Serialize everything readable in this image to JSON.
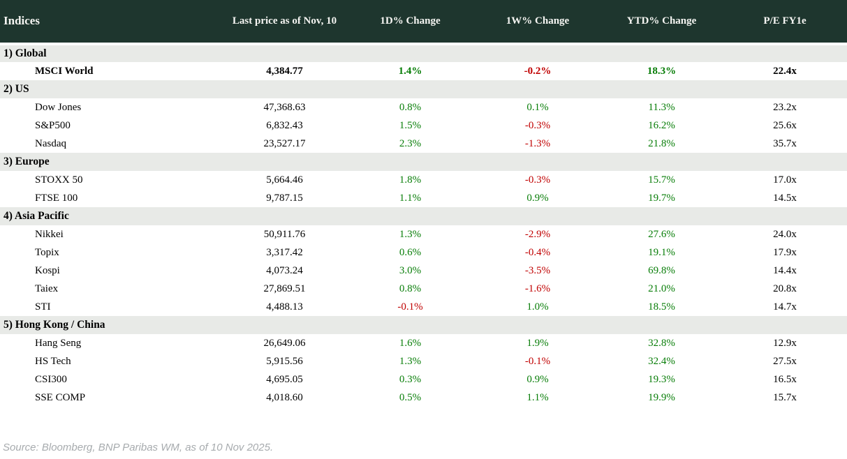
{
  "header": {
    "col_indices": "Indices",
    "col_last_price": "Last price as of Nov, 10",
    "col_1d": "1D% Change",
    "col_1w": "1W% Change",
    "col_ytd": "YTD% Change",
    "col_pe": "P/E FY1e"
  },
  "colors": {
    "header_background": "#1e362e",
    "header_text": "#f5f5f2",
    "section_row_background": "#e8eae7",
    "positive_change": "#077d07",
    "negative_change": "#c00000",
    "body_text": "#000000",
    "source_text": "#a7abae"
  },
  "sections": [
    {
      "label": "1) Global",
      "rows": [
        {
          "name": "MSCI World",
          "last_price": "4,384.77",
          "d1": "1.4%",
          "w1": "-0.2%",
          "ytd": "18.3%",
          "pe": "22.4x",
          "bold": true
        }
      ]
    },
    {
      "label": "2) US",
      "rows": [
        {
          "name": "Dow Jones",
          "last_price": "47,368.63",
          "d1": "0.8%",
          "w1": "0.1%",
          "ytd": "11.3%",
          "pe": "23.2x",
          "bold": false
        },
        {
          "name": "S&P500",
          "last_price": "6,832.43",
          "d1": "1.5%",
          "w1": "-0.3%",
          "ytd": "16.2%",
          "pe": "25.6x",
          "bold": false
        },
        {
          "name": "Nasdaq",
          "last_price": "23,527.17",
          "d1": "2.3%",
          "w1": "-1.3%",
          "ytd": "21.8%",
          "pe": "35.7x",
          "bold": false
        }
      ]
    },
    {
      "label": "3) Europe",
      "rows": [
        {
          "name": "STOXX 50",
          "last_price": "5,664.46",
          "d1": "1.8%",
          "w1": "-0.3%",
          "ytd": "15.7%",
          "pe": "17.0x",
          "bold": false
        },
        {
          "name": "FTSE 100",
          "last_price": "9,787.15",
          "d1": "1.1%",
          "w1": "0.9%",
          "ytd": "19.7%",
          "pe": "14.5x",
          "bold": false
        }
      ]
    },
    {
      "label": "4) Asia Pacific",
      "rows": [
        {
          "name": "Nikkei",
          "last_price": "50,911.76",
          "d1": "1.3%",
          "w1": "-2.9%",
          "ytd": "27.6%",
          "pe": "24.0x",
          "bold": false
        },
        {
          "name": "Topix",
          "last_price": "3,317.42",
          "d1": "0.6%",
          "w1": "-0.4%",
          "ytd": "19.1%",
          "pe": "17.9x",
          "bold": false
        },
        {
          "name": "Kospi",
          "last_price": "4,073.24",
          "d1": "3.0%",
          "w1": "-3.5%",
          "ytd": "69.8%",
          "pe": "14.4x",
          "bold": false
        },
        {
          "name": "Taiex",
          "last_price": "27,869.51",
          "d1": "0.8%",
          "w1": "-1.6%",
          "ytd": "21.0%",
          "pe": "20.8x",
          "bold": false
        },
        {
          "name": "STI",
          "last_price": "4,488.13",
          "d1": "-0.1%",
          "w1": "1.0%",
          "ytd": "18.5%",
          "pe": "14.7x",
          "bold": false
        }
      ]
    },
    {
      "label": "5) Hong Kong / China",
      "rows": [
        {
          "name": "Hang Seng",
          "last_price": "26,649.06",
          "d1": "1.6%",
          "w1": "1.9%",
          "ytd": "32.8%",
          "pe": "12.9x",
          "bold": false
        },
        {
          "name": "HS Tech",
          "last_price": "5,915.56",
          "d1": "1.3%",
          "w1": "-0.1%",
          "ytd": "32.4%",
          "pe": "27.5x",
          "bold": false
        },
        {
          "name": "CSI300",
          "last_price": "4,695.05",
          "d1": "0.3%",
          "w1": "0.9%",
          "ytd": "19.3%",
          "pe": "16.5x",
          "bold": false
        },
        {
          "name": "SSE COMP",
          "last_price": "4,018.60",
          "d1": "0.5%",
          "w1": "1.1%",
          "ytd": "19.9%",
          "pe": "15.7x",
          "bold": false
        }
      ]
    }
  ],
  "footer": {
    "source": "Source: Bloomberg, BNP Paribas WM, as of 10 Nov 2025."
  }
}
